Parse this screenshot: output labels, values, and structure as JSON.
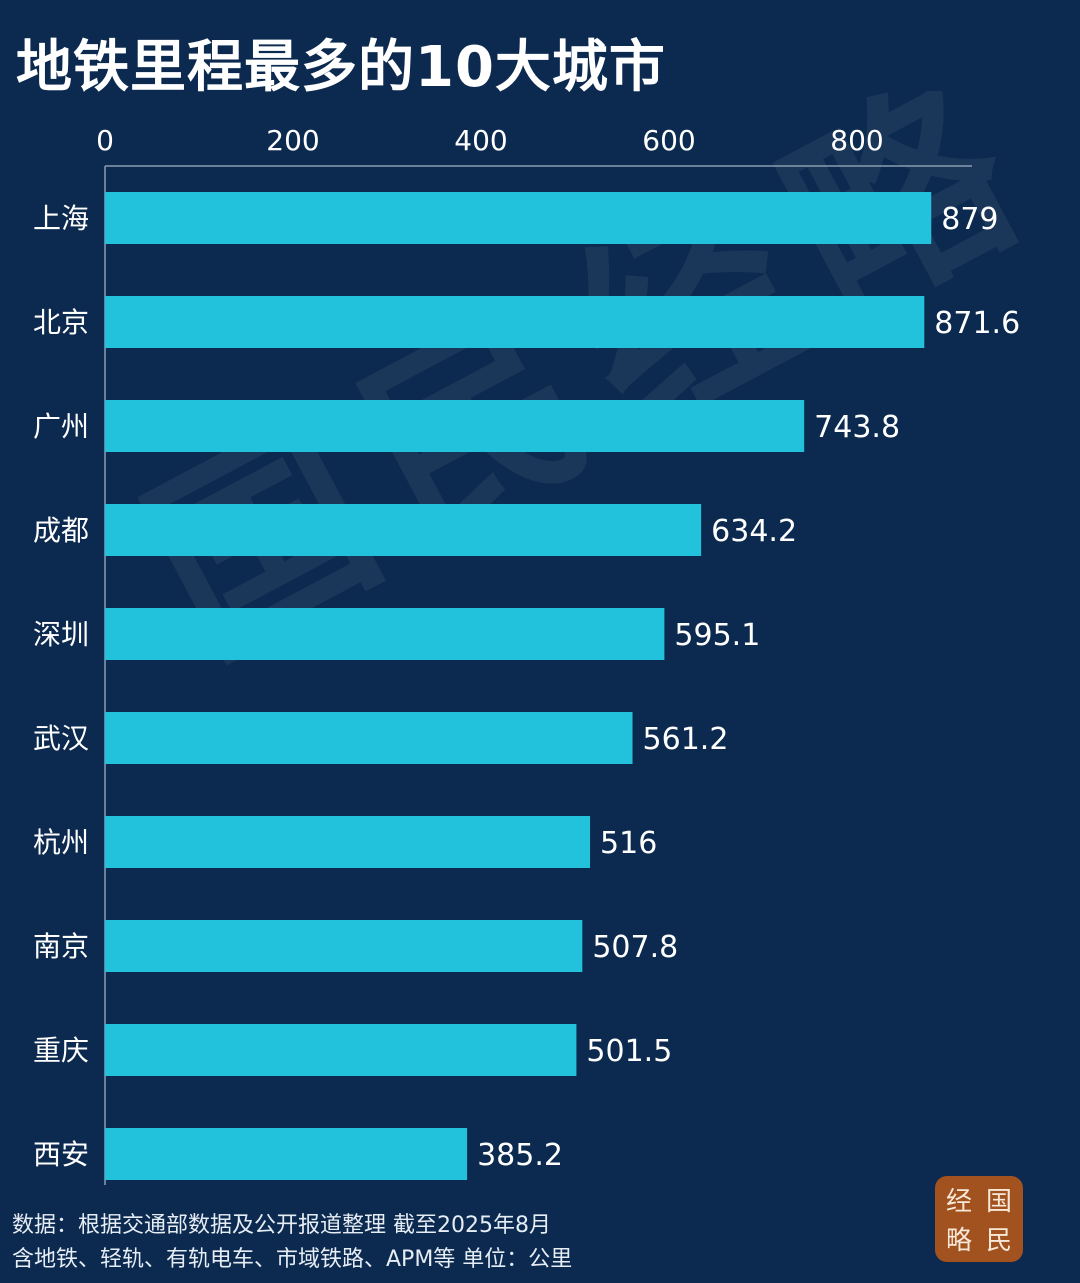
{
  "title": "地铁里程最多的10大城市",
  "watermark": "国民经略",
  "footer": {
    "source": "数据：根据交通部数据及公开报道整理 截至2025年8月",
    "note": "含地铁、轻轨、有轨电车、市域铁路、APM等 单位：公里"
  },
  "logo": {
    "chars": [
      "经",
      "国",
      "略",
      "民"
    ]
  },
  "colors": {
    "background": "#0c2a4f",
    "bar": "#22c1dc",
    "text": "#ffffff",
    "axis": "#8a9bb0",
    "logo": "#a2521f"
  },
  "chart_data": {
    "type": "bar",
    "orientation": "horizontal",
    "categories": [
      "上海",
      "北京",
      "广州",
      "成都",
      "深圳",
      "武汉",
      "杭州",
      "南京",
      "重庆",
      "西安"
    ],
    "values": [
      879,
      871.6,
      743.8,
      634.2,
      595.1,
      561.2,
      516,
      507.8,
      501.5,
      385.2
    ],
    "data_labels": [
      "879",
      "871.6",
      "743.8",
      "634.2",
      "595.1",
      "561.2",
      "516",
      "507.8",
      "501.5",
      "385.2"
    ],
    "x_ticks": [
      0,
      200,
      400,
      600,
      800
    ],
    "xlim": [
      0,
      920
    ],
    "axis_position": "top",
    "grid": false,
    "legend": "none"
  }
}
